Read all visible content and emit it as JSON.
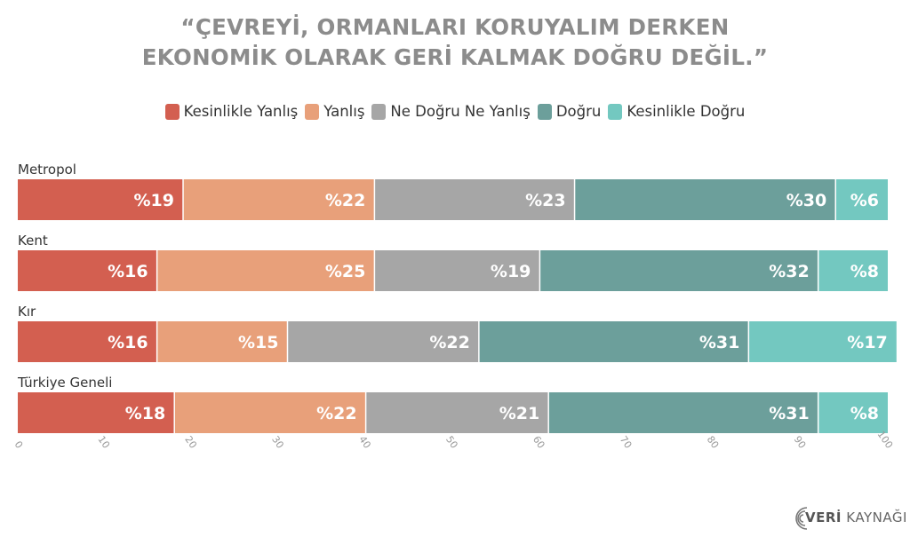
{
  "title": {
    "line1": "“ÇEVREYİ, ORMANLARI KORUYALIM DERKEN",
    "line2": "EKONOMİK OLARAK GERİ KALMAK DOĞRU DEĞİL.”"
  },
  "colors": {
    "kesinlikle_yanlis": "#d35f50",
    "yanlis": "#e8a07a",
    "ne_dogru_ne_yanlis": "#a6a6a6",
    "dogru": "#6c9f9b",
    "kesinlikle_dogru": "#73c8c0",
    "title": "#8c8c8c",
    "axis_tick": "#9a9a9a"
  },
  "logo": {
    "text_bold": "VERİ",
    "text_regular": "KAYNAĞI",
    "icon": "concentric-arcs-icon"
  },
  "chart_data": {
    "type": "bar",
    "orientation": "horizontal",
    "stacked": true,
    "categories": [
      "Metropol",
      "Kent",
      "Kır",
      "Türkiye Geneli"
    ],
    "series": [
      {
        "name": "Kesinlikle Yanlış",
        "values": [
          19,
          16,
          16,
          18
        ],
        "labels": [
          "%19",
          "%16",
          "%16",
          "%18"
        ],
        "color": "#d35f50"
      },
      {
        "name": "Yanlış",
        "values": [
          22,
          25,
          15,
          22
        ],
        "labels": [
          "%22",
          "%25",
          "%15",
          "%22"
        ],
        "color": "#e8a07a"
      },
      {
        "name": "Ne Doğru Ne Yanlış",
        "values": [
          23,
          19,
          22,
          21
        ],
        "labels": [
          "%23",
          "%19",
          "%22",
          "%21"
        ],
        "color": "#a6a6a6"
      },
      {
        "name": "Doğru",
        "values": [
          30,
          32,
          31,
          31
        ],
        "labels": [
          "%30",
          "%32",
          "%31",
          "%31"
        ],
        "color": "#6c9f9b"
      },
      {
        "name": "Kesinlikle Doğru",
        "values": [
          6,
          8,
          17,
          8
        ],
        "labels": [
          "%6",
          "%8",
          "%17",
          "%8"
        ],
        "color": "#73c8c0"
      }
    ],
    "xlim": [
      0,
      100
    ],
    "xticks": [
      "0",
      "10",
      "20",
      "30",
      "40",
      "50",
      "60",
      "70",
      "80",
      "90",
      "100"
    ],
    "legend_position": "top-center",
    "grid": false
  }
}
